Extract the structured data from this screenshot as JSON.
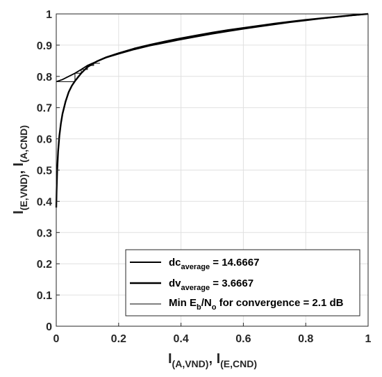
{
  "chart_data": {
    "type": "line",
    "title": "",
    "xlabel": {
      "main": "I",
      "sub1": "(A,VND)",
      "sep": ", ",
      "main2": "I",
      "sub2": "(E,CND)"
    },
    "ylabel": {
      "main": "I",
      "sub1": "(E,VND)",
      "sep": ", ",
      "main2": "I",
      "sub2": "(A,CND)"
    },
    "xlim": [
      0,
      1
    ],
    "ylim": [
      0,
      1
    ],
    "x_ticks": [
      "0",
      "0.2",
      "0.4",
      "0.6",
      "0.8",
      "1"
    ],
    "x_tick_values": [
      0,
      0.2,
      0.4,
      0.6,
      0.8,
      1
    ],
    "y_ticks": [
      "0",
      "0.1",
      "0.2",
      "0.3",
      "0.4",
      "0.5",
      "0.6",
      "0.7",
      "0.8",
      "0.9",
      "1"
    ],
    "y_tick_values": [
      0,
      0.1,
      0.2,
      0.3,
      0.4,
      0.5,
      0.6,
      0.7,
      0.8,
      0.9,
      1
    ],
    "grid": true,
    "legend_position": "bottom-right",
    "series": [
      {
        "name": "dc_average = 14.6667",
        "legend": {
          "main": "dc",
          "sub": "average",
          "rest": " = 14.6667"
        },
        "color": "#000000",
        "x": [
          0.0,
          0.02,
          0.04,
          0.06,
          0.08,
          0.1,
          0.13,
          0.16,
          0.2,
          0.25,
          0.3,
          0.35,
          0.4,
          0.45,
          0.5,
          0.55,
          0.6,
          0.65,
          0.7,
          0.75,
          0.8,
          0.85,
          0.9,
          0.95,
          1.0
        ],
        "y": [
          0.783,
          0.79,
          0.8,
          0.81,
          0.822,
          0.835,
          0.848,
          0.86,
          0.872,
          0.886,
          0.898,
          0.908,
          0.918,
          0.927,
          0.936,
          0.944,
          0.952,
          0.959,
          0.966,
          0.973,
          0.979,
          0.985,
          0.99,
          0.995,
          1.0
        ]
      },
      {
        "name": "dv_average = 3.6667",
        "legend": {
          "main": "dv",
          "sub": "average",
          "rest": " = 3.6667"
        },
        "color": "#000000",
        "x": [
          0.0,
          0.001,
          0.003,
          0.006,
          0.01,
          0.015,
          0.02,
          0.03,
          0.04,
          0.05,
          0.06,
          0.08,
          0.1,
          0.13,
          0.16,
          0.2,
          0.25,
          0.3,
          0.35,
          0.4,
          0.45,
          0.5,
          0.55,
          0.6,
          0.65,
          0.7,
          0.75,
          0.8,
          0.85,
          0.9,
          0.95,
          1.0
        ],
        "y": [
          0.38,
          0.43,
          0.5,
          0.56,
          0.61,
          0.65,
          0.68,
          0.72,
          0.75,
          0.77,
          0.785,
          0.81,
          0.83,
          0.848,
          0.861,
          0.874,
          0.889,
          0.901,
          0.912,
          0.922,
          0.931,
          0.94,
          0.948,
          0.955,
          0.962,
          0.969,
          0.975,
          0.981,
          0.986,
          0.991,
          0.996,
          1.0
        ]
      },
      {
        "name": "Min E_b/N_o for convergence = 2.1 dB",
        "legend": {
          "main": "Min E",
          "sub": "b",
          "mid": "/N",
          "sub2": "o",
          "rest": " for convergence = 2.1 dB"
        },
        "color": "#000000",
        "x": [
          0.0,
          0.06,
          0.06,
          0.08,
          0.08,
          0.1,
          0.1,
          0.12,
          0.12,
          0.14
        ],
        "y": [
          0.783,
          0.783,
          0.81,
          0.81,
          0.822,
          0.822,
          0.835,
          0.835,
          0.842,
          0.842
        ]
      }
    ]
  }
}
